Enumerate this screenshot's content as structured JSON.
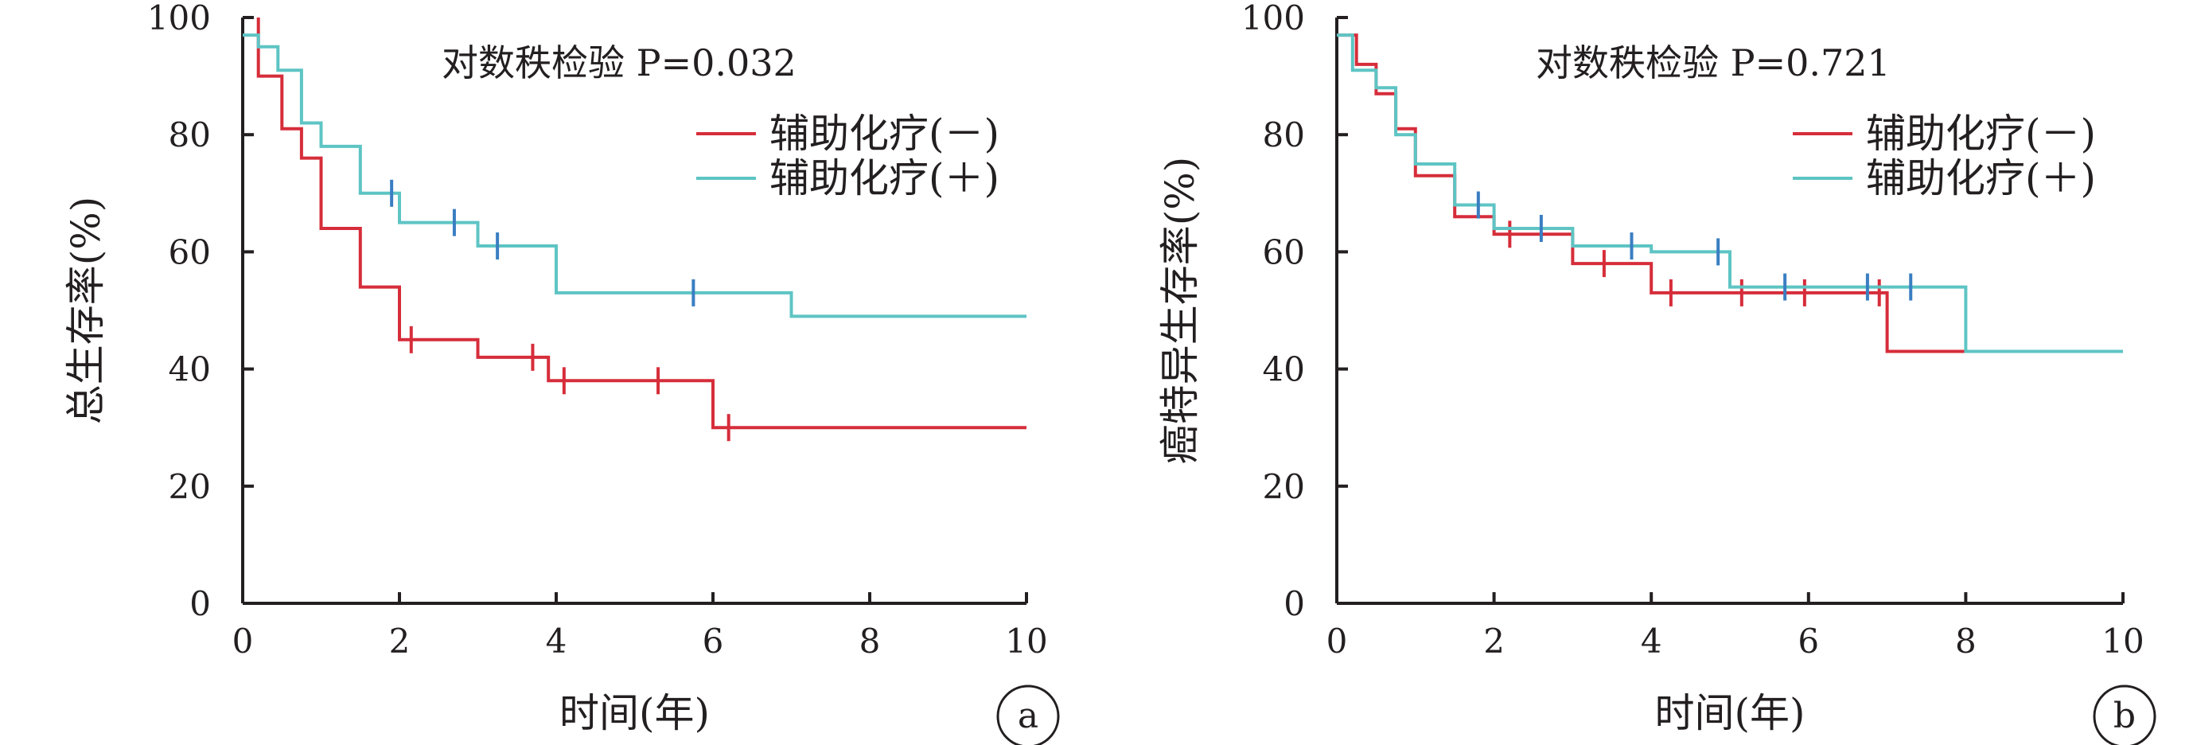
{
  "chart_data": [
    {
      "id": "a",
      "type": "line",
      "panel_label": "a",
      "annotation": "对数秩检验 P=0.032",
      "xlabel": "时间(年)",
      "ylabel": "总生存率(%)",
      "xlim": [
        0,
        10
      ],
      "ylim": [
        0,
        100
      ],
      "xticks": [
        "0",
        "2",
        "4",
        "6",
        "8",
        "10"
      ],
      "yticks": [
        "0",
        "20",
        "40",
        "60",
        "80",
        "100"
      ],
      "grid": false,
      "legend_position": "top-right",
      "series": [
        {
          "name": "辅助化疗(－)",
          "color": "#d62d3a",
          "steps": [
            [
              0.2,
              100
            ],
            [
              0.2,
              90
            ],
            [
              0.5,
              90
            ],
            [
              0.5,
              81
            ],
            [
              0.75,
              81
            ],
            [
              0.75,
              76
            ],
            [
              1.0,
              76
            ],
            [
              1.0,
              64
            ],
            [
              1.5,
              64
            ],
            [
              1.5,
              54
            ],
            [
              2.0,
              54
            ],
            [
              2.0,
              45
            ],
            [
              3.0,
              45
            ],
            [
              3.0,
              42
            ],
            [
              3.9,
              42
            ],
            [
              3.9,
              38
            ],
            [
              6.0,
              38
            ],
            [
              6.0,
              30
            ],
            [
              10.0,
              30
            ]
          ],
          "censored": [
            [
              2.15,
              45
            ],
            [
              3.7,
              42
            ],
            [
              4.1,
              38
            ],
            [
              5.3,
              38
            ],
            [
              6.2,
              30
            ]
          ]
        },
        {
          "name": "辅助化疗(＋)",
          "color": "#5ec4c4",
          "censor_color": "#3a7ec2",
          "steps": [
            [
              0,
              97
            ],
            [
              0.2,
              97
            ],
            [
              0.2,
              95
            ],
            [
              0.45,
              95
            ],
            [
              0.45,
              91
            ],
            [
              0.75,
              91
            ],
            [
              0.75,
              82
            ],
            [
              1.0,
              82
            ],
            [
              1.0,
              78
            ],
            [
              1.5,
              78
            ],
            [
              1.5,
              70
            ],
            [
              2.0,
              70
            ],
            [
              2.0,
              65
            ],
            [
              3.0,
              65
            ],
            [
              3.0,
              61
            ],
            [
              4.0,
              61
            ],
            [
              4.0,
              53
            ],
            [
              7.0,
              53
            ],
            [
              7.0,
              49
            ],
            [
              10.0,
              49
            ]
          ],
          "censored": [
            [
              1.9,
              70
            ],
            [
              2.7,
              65
            ],
            [
              3.25,
              61
            ],
            [
              5.75,
              53
            ]
          ]
        }
      ]
    },
    {
      "id": "b",
      "type": "line",
      "panel_label": "b",
      "annotation": "对数秩检验 P=0.721",
      "xlabel": "时间(年)",
      "ylabel": "癌特异生存率(%)",
      "xlim": [
        0,
        10
      ],
      "ylim": [
        0,
        100
      ],
      "xticks": [
        "0",
        "2",
        "4",
        "6",
        "8",
        "10"
      ],
      "yticks": [
        "0",
        "20",
        "40",
        "60",
        "80",
        "100"
      ],
      "grid": false,
      "legend_position": "top-right",
      "series": [
        {
          "name": "辅助化疗(－)",
          "color": "#d62d3a",
          "steps": [
            [
              0,
              97
            ],
            [
              0.25,
              97
            ],
            [
              0.25,
              92
            ],
            [
              0.5,
              92
            ],
            [
              0.5,
              87
            ],
            [
              0.75,
              87
            ],
            [
              0.75,
              81
            ],
            [
              1.0,
              81
            ],
            [
              1.0,
              73
            ],
            [
              1.5,
              73
            ],
            [
              1.5,
              66
            ],
            [
              2.0,
              66
            ],
            [
              2.0,
              63
            ],
            [
              3.0,
              63
            ],
            [
              3.0,
              58
            ],
            [
              4.0,
              58
            ],
            [
              4.0,
              53
            ],
            [
              7.0,
              53
            ],
            [
              7.0,
              43
            ],
            [
              8.0,
              43
            ]
          ],
          "censored": [
            [
              2.2,
              63
            ],
            [
              3.4,
              58
            ],
            [
              4.25,
              53
            ],
            [
              5.15,
              53
            ],
            [
              5.95,
              53
            ],
            [
              6.9,
              53
            ]
          ]
        },
        {
          "name": "辅助化疗(＋)",
          "color": "#5ec4c4",
          "censor_color": "#3a7ec2",
          "steps": [
            [
              0,
              97
            ],
            [
              0.2,
              97
            ],
            [
              0.2,
              91
            ],
            [
              0.5,
              91
            ],
            [
              0.5,
              88
            ],
            [
              0.75,
              88
            ],
            [
              0.75,
              80
            ],
            [
              1.0,
              80
            ],
            [
              1.0,
              75
            ],
            [
              1.5,
              75
            ],
            [
              1.5,
              68
            ],
            [
              2.0,
              68
            ],
            [
              2.0,
              64
            ],
            [
              3.0,
              64
            ],
            [
              3.0,
              61
            ],
            [
              4.0,
              61
            ],
            [
              4.0,
              60
            ],
            [
              5.0,
              60
            ],
            [
              5.0,
              54
            ],
            [
              8.0,
              54
            ],
            [
              8.0,
              43
            ],
            [
              10.0,
              43
            ]
          ],
          "censored": [
            [
              1.8,
              68
            ],
            [
              2.6,
              64
            ],
            [
              3.75,
              61
            ],
            [
              4.85,
              60
            ],
            [
              5.7,
              54
            ],
            [
              6.75,
              54
            ],
            [
              7.3,
              54
            ]
          ]
        }
      ]
    }
  ]
}
